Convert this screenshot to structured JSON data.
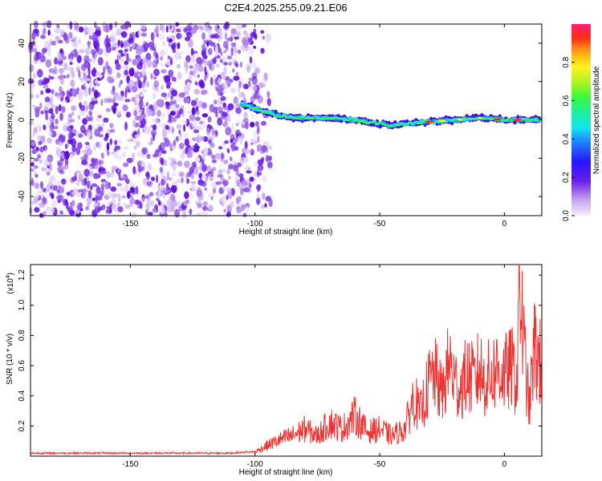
{
  "title": "C2E4.2025.255.09.21.E06",
  "chart_data": [
    {
      "type": "heatmap",
      "xlabel": "Height of straight line (km)",
      "ylabel": "Frequency (Hz)",
      "xlim": [
        -190,
        15
      ],
      "ylim": [
        -50,
        50
      ],
      "x_ticks": [
        -150,
        -100,
        -50,
        0
      ],
      "y_ticks": [
        -40,
        -20,
        0,
        20,
        40
      ],
      "y_tick_labels": [
        "-40",
        "-20",
        "0",
        "20",
        "40"
      ],
      "x_tick_labels": [
        "-150",
        "-100",
        "-50",
        "0"
      ],
      "colorbar": {
        "label": "Normalized spectral amplitude",
        "range": [
          0,
          1
        ],
        "ticks": [
          0.0,
          0.2,
          0.4,
          0.6,
          0.8
        ],
        "tick_labels": [
          "0.0",
          "0.2",
          "0.4",
          "0.6",
          "0.8"
        ]
      },
      "description_ridge": {
        "x": [
          -105,
          -100,
          -90,
          -80,
          -70,
          -60,
          -50,
          -45,
          -40,
          -30,
          -20,
          -10,
          0,
          10,
          15
        ],
        "y": [
          8,
          6,
          2,
          1,
          1,
          0,
          -2,
          -3,
          -2,
          -1,
          0,
          1,
          0,
          0,
          0
        ]
      },
      "noise_region_x": [
        -190,
        -100
      ]
    },
    {
      "type": "line",
      "xlabel": "Height of straight line (km)",
      "ylabel": "SNR (10 * v/v)",
      "y_multiplier": "(x10",
      "y_multiplier_exp": "4",
      "y_multiplier_close": ")",
      "xlim": [
        -190,
        15
      ],
      "ylim": [
        0,
        1.27
      ],
      "x_ticks": [
        -150,
        -100,
        -50,
        0
      ],
      "x_tick_labels": [
        "-150",
        "-100",
        "-50",
        "0"
      ],
      "y_ticks": [
        0.2,
        0.4,
        0.6,
        0.8,
        1.0,
        1.2
      ],
      "y_tick_labels": [
        "0.2",
        "0.4",
        "0.6",
        "0.8",
        "1.0",
        "1.2"
      ],
      "series": [
        {
          "color": "#ee3333",
          "x": [
            -190,
            -160,
            -130,
            -110,
            -100,
            -95,
            -90,
            -85,
            -80,
            -75,
            -70,
            -65,
            -60,
            -55,
            -50,
            -45,
            -40,
            -36,
            -34,
            -30,
            -28,
            -25,
            -22,
            -20,
            -18,
            -15,
            -12,
            -10,
            -8,
            -5,
            -3,
            0,
            3,
            5,
            6,
            8,
            10,
            12,
            15
          ],
          "y": [
            0.02,
            0.02,
            0.02,
            0.02,
            0.03,
            0.08,
            0.12,
            0.15,
            0.2,
            0.15,
            0.25,
            0.2,
            0.3,
            0.18,
            0.2,
            0.15,
            0.2,
            0.45,
            0.3,
            0.55,
            0.6,
            0.45,
            0.7,
            0.55,
            0.5,
            0.6,
            0.55,
            0.65,
            0.55,
            0.6,
            0.65,
            0.6,
            0.65,
            0.55,
            1.27,
            0.75,
            0.35,
            0.8,
            0.65
          ]
        }
      ]
    }
  ]
}
